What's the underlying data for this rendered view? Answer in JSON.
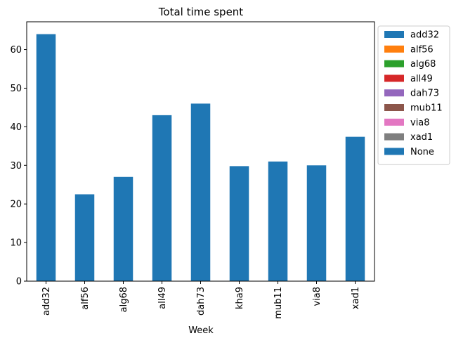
{
  "chart_data": {
    "type": "bar",
    "title": "Total time spent",
    "xlabel": "Week",
    "ylabel": "",
    "categories": [
      "add32",
      "alf56",
      "alg68",
      "all49",
      "dah73",
      "kha9",
      "mub11",
      "via8",
      "xad1"
    ],
    "values": [
      64,
      22.5,
      27,
      43,
      46,
      29.8,
      31,
      30,
      37.4
    ],
    "ylim": [
      0,
      67.2
    ],
    "yticks": [
      0,
      10,
      20,
      30,
      40,
      50,
      60
    ],
    "grid": false,
    "bar_color": "#1f77b4",
    "legend": {
      "placement": "outside-top-right",
      "entries": [
        {
          "label": "add32",
          "color": "#1f77b4"
        },
        {
          "label": "alf56",
          "color": "#ff7f0e"
        },
        {
          "label": "alg68",
          "color": "#2ca02c"
        },
        {
          "label": "all49",
          "color": "#d62728"
        },
        {
          "label": "dah73",
          "color": "#9467bd"
        },
        {
          "label": "mub11",
          "color": "#8c564b"
        },
        {
          "label": "via8",
          "color": "#e377c2"
        },
        {
          "label": "xad1",
          "color": "#7f7f7f"
        },
        {
          "label": "None",
          "color": "#1f77b4"
        }
      ]
    }
  }
}
